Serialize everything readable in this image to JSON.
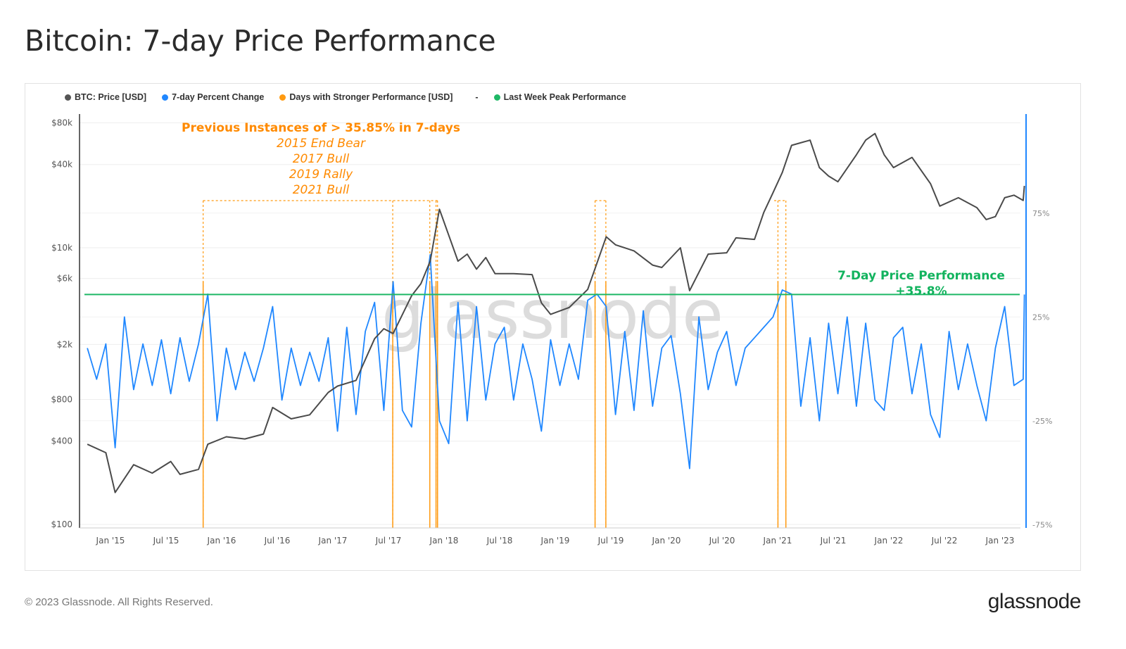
{
  "title": "Bitcoin: 7-day Price Performance",
  "footer": "© 2023 Glassnode. All Rights Reserved.",
  "brand": "glassnode",
  "watermark": "glassnode",
  "legend": [
    {
      "label": "BTC: Price [USD]",
      "color": "#555555"
    },
    {
      "label": "7-day Percent Change",
      "color": "#1f87ff"
    },
    {
      "label": "Days with Stronger Performance [USD]",
      "color": "#ff9a10"
    },
    {
      "label": "-",
      "color": ""
    },
    {
      "label": "Last Week Peak Performance",
      "color": "#1fb866"
    }
  ],
  "annotations": {
    "heading": "Previous Instances of > 35.85% in 7-days",
    "instances": [
      "2015 End Bear",
      "2017 Bull",
      "2019 Rally",
      "2021 Bull"
    ],
    "peak_label": "7-Day Price Performance",
    "peak_value": "+35.8%"
  },
  "chart_data": {
    "type": "line",
    "x_ticks": [
      "Jan '15",
      "Jul '15",
      "Jan '16",
      "Jul '16",
      "Jan '17",
      "Jul '17",
      "Jan '18",
      "Jul '18",
      "Jan '19",
      "Jul '19",
      "Jan '20",
      "Jul '20",
      "Jan '21",
      "Jul '21",
      "Jan '22",
      "Jul '22",
      "Jan '23"
    ],
    "left_axis": {
      "scale": "log",
      "ylim": [
        100,
        80000
      ],
      "ticks": [
        "$100",
        "$400",
        "$800",
        "$2k",
        "$6k",
        "$10k",
        "$40k",
        "$80k"
      ],
      "tick_values": [
        100,
        400,
        800,
        2000,
        6000,
        10000,
        40000,
        80000
      ]
    },
    "right_axis": {
      "scale": "linear",
      "ylim": [
        -75,
        100
      ],
      "ticks": [
        "-75%",
        "-25%",
        "25%",
        "75%"
      ],
      "tick_values": [
        -75,
        -25,
        25,
        75
      ]
    },
    "grid": true,
    "legend_position": "top-left",
    "series": [
      {
        "name": "BTC: Price [USD]",
        "axis": "left",
        "color": "#555555",
        "points": [
          [
            "2014-10",
            380
          ],
          [
            "2014-12",
            330
          ],
          [
            "2015-01",
            170
          ],
          [
            "2015-03",
            270
          ],
          [
            "2015-05",
            235
          ],
          [
            "2015-07",
            285
          ],
          [
            "2015-08",
            230
          ],
          [
            "2015-10",
            250
          ],
          [
            "2015-11",
            380
          ],
          [
            "2016-01",
            430
          ],
          [
            "2016-03",
            415
          ],
          [
            "2016-05",
            450
          ],
          [
            "2016-06",
            700
          ],
          [
            "2016-08",
            580
          ],
          [
            "2016-10",
            620
          ],
          [
            "2016-12",
            900
          ],
          [
            "2017-01",
            1000
          ],
          [
            "2017-03",
            1100
          ],
          [
            "2017-05",
            2200
          ],
          [
            "2017-06",
            2600
          ],
          [
            "2017-07",
            2400
          ],
          [
            "2017-09",
            4500
          ],
          [
            "2017-10",
            5500
          ],
          [
            "2017-11",
            8000
          ],
          [
            "2017-12",
            19000
          ],
          [
            "2018-02",
            8000
          ],
          [
            "2018-03",
            9000
          ],
          [
            "2018-04",
            7000
          ],
          [
            "2018-05",
            8500
          ],
          [
            "2018-06",
            6500
          ],
          [
            "2018-08",
            6500
          ],
          [
            "2018-10",
            6400
          ],
          [
            "2018-11",
            4000
          ],
          [
            "2018-12",
            3300
          ],
          [
            "2019-02",
            3700
          ],
          [
            "2019-04",
            5000
          ],
          [
            "2019-06",
            12000
          ],
          [
            "2019-07",
            10500
          ],
          [
            "2019-09",
            9500
          ],
          [
            "2019-11",
            7500
          ],
          [
            "2019-12",
            7200
          ],
          [
            "2020-02",
            10000
          ],
          [
            "2020-03",
            4900
          ],
          [
            "2020-05",
            9000
          ],
          [
            "2020-07",
            9200
          ],
          [
            "2020-08",
            11800
          ],
          [
            "2020-10",
            11500
          ],
          [
            "2020-11",
            18000
          ],
          [
            "2020-12",
            25000
          ],
          [
            "2021-01",
            35000
          ],
          [
            "2021-02",
            55000
          ],
          [
            "2021-04",
            60000
          ],
          [
            "2021-05",
            38000
          ],
          [
            "2021-06",
            33000
          ],
          [
            "2021-07",
            30000
          ],
          [
            "2021-09",
            47000
          ],
          [
            "2021-10",
            60000
          ],
          [
            "2021-11",
            67000
          ],
          [
            "2021-12",
            47000
          ],
          [
            "2022-01",
            38000
          ],
          [
            "2022-03",
            45000
          ],
          [
            "2022-05",
            29000
          ],
          [
            "2022-06",
            20000
          ],
          [
            "2022-08",
            23000
          ],
          [
            "2022-10",
            19500
          ],
          [
            "2022-11",
            16000
          ],
          [
            "2022-12",
            16800
          ],
          [
            "2023-01",
            23000
          ],
          [
            "2023-02",
            24000
          ],
          [
            "2023-03",
            22000
          ],
          [
            "2023-03-20",
            28000
          ]
        ]
      },
      {
        "name": "7-day Percent Change",
        "axis": "right",
        "color": "#1f87ff",
        "points": [
          [
            "2014-10",
            10
          ],
          [
            "2014-11",
            -5
          ],
          [
            "2014-12",
            12
          ],
          [
            "2015-01",
            -38
          ],
          [
            "2015-02",
            25
          ],
          [
            "2015-03",
            -10
          ],
          [
            "2015-04",
            12
          ],
          [
            "2015-05",
            -8
          ],
          [
            "2015-06",
            14
          ],
          [
            "2015-07",
            -12
          ],
          [
            "2015-08",
            15
          ],
          [
            "2015-09",
            -6
          ],
          [
            "2015-10",
            12
          ],
          [
            "2015-11",
            36
          ],
          [
            "2015-12",
            -25
          ],
          [
            "2016-01",
            10
          ],
          [
            "2016-02",
            -10
          ],
          [
            "2016-03",
            8
          ],
          [
            "2016-04",
            -6
          ],
          [
            "2016-05",
            10
          ],
          [
            "2016-06",
            30
          ],
          [
            "2016-07",
            -15
          ],
          [
            "2016-08",
            10
          ],
          [
            "2016-09",
            -8
          ],
          [
            "2016-10",
            8
          ],
          [
            "2016-11",
            -6
          ],
          [
            "2016-12",
            15
          ],
          [
            "2017-01",
            -30
          ],
          [
            "2017-02",
            20
          ],
          [
            "2017-03",
            -22
          ],
          [
            "2017-04",
            18
          ],
          [
            "2017-05",
            32
          ],
          [
            "2017-06",
            -20
          ],
          [
            "2017-07",
            42
          ],
          [
            "2017-08",
            -20
          ],
          [
            "2017-09",
            -28
          ],
          [
            "2017-10",
            22
          ],
          [
            "2017-11",
            55
          ],
          [
            "2017-12",
            -25
          ],
          [
            "2018-01",
            -36
          ],
          [
            "2018-02",
            32
          ],
          [
            "2018-03",
            -25
          ],
          [
            "2018-04",
            30
          ],
          [
            "2018-05",
            -15
          ],
          [
            "2018-06",
            12
          ],
          [
            "2018-07",
            20
          ],
          [
            "2018-08",
            -15
          ],
          [
            "2018-09",
            12
          ],
          [
            "2018-10",
            -5
          ],
          [
            "2018-11",
            -30
          ],
          [
            "2018-12",
            14
          ],
          [
            "2019-01",
            -8
          ],
          [
            "2019-02",
            12
          ],
          [
            "2019-03",
            -5
          ],
          [
            "2019-04",
            33
          ],
          [
            "2019-05",
            36
          ],
          [
            "2019-06",
            30
          ],
          [
            "2019-07",
            -22
          ],
          [
            "2019-08",
            18
          ],
          [
            "2019-09",
            -20
          ],
          [
            "2019-10",
            28
          ],
          [
            "2019-11",
            -18
          ],
          [
            "2019-12",
            10
          ],
          [
            "2020-01",
            16
          ],
          [
            "2020-02",
            -12
          ],
          [
            "2020-03",
            -48
          ],
          [
            "2020-04",
            25
          ],
          [
            "2020-05",
            -10
          ],
          [
            "2020-06",
            8
          ],
          [
            "2020-07",
            18
          ],
          [
            "2020-08",
            -8
          ],
          [
            "2020-09",
            10
          ],
          [
            "2020-10",
            15
          ],
          [
            "2020-11",
            20
          ],
          [
            "2020-12",
            25
          ],
          [
            "2021-01",
            38
          ],
          [
            "2021-02",
            36
          ],
          [
            "2021-03",
            -18
          ],
          [
            "2021-04",
            15
          ],
          [
            "2021-05",
            -25
          ],
          [
            "2021-06",
            22
          ],
          [
            "2021-07",
            -12
          ],
          [
            "2021-08",
            25
          ],
          [
            "2021-09",
            -18
          ],
          [
            "2021-10",
            22
          ],
          [
            "2021-11",
            -15
          ],
          [
            "2021-12",
            -20
          ],
          [
            "2022-01",
            15
          ],
          [
            "2022-02",
            20
          ],
          [
            "2022-03",
            -12
          ],
          [
            "2022-04",
            12
          ],
          [
            "2022-05",
            -22
          ],
          [
            "2022-06",
            -33
          ],
          [
            "2022-07",
            18
          ],
          [
            "2022-08",
            -10
          ],
          [
            "2022-09",
            12
          ],
          [
            "2022-10",
            -8
          ],
          [
            "2022-11",
            -25
          ],
          [
            "2022-12",
            10
          ],
          [
            "2023-01",
            30
          ],
          [
            "2023-02",
            -8
          ],
          [
            "2023-03",
            -5
          ],
          [
            "2023-03-20",
            35.8
          ]
        ]
      },
      {
        "name": "Days with Stronger Performance [USD]",
        "axis": "left",
        "color": "#ff9a10",
        "type": "bar",
        "dates": [
          "2015-11-01",
          "2017-07-15",
          "2017-11-15",
          "2017-12-05",
          "2017-12-10",
          "2019-05-10",
          "2019-06-15",
          "2021-01-02",
          "2021-01-28"
        ]
      },
      {
        "name": "Last Week Peak Performance",
        "axis": "right",
        "color": "#1fb866",
        "type": "hline",
        "value": 35.8
      }
    ],
    "instance_groups": [
      [
        "2015-11-01",
        "2017-12-10"
      ],
      [
        "2019-05-10",
        "2019-06-15"
      ],
      [
        "2020-12-20",
        "2021-01-28"
      ]
    ]
  }
}
